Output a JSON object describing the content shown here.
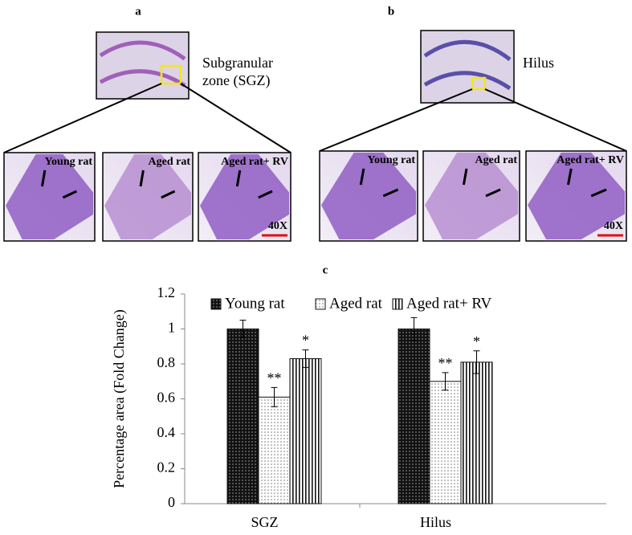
{
  "panels": [
    {
      "label": "a",
      "caption": [
        "Subgranular",
        "zone (SGZ)"
      ],
      "insets": [
        "Young rat",
        "Aged  rat",
        "Aged rat+ RV"
      ],
      "scale": "40X"
    },
    {
      "label": "b",
      "caption": [
        "Hilus"
      ],
      "insets": [
        "Young rat",
        "Aged  rat",
        "Aged rat+ RV"
      ],
      "scale": "40X"
    }
  ],
  "chart_data": {
    "type": "bar",
    "title": "c",
    "y_label": "Percentage area (Fold Change)",
    "categories": [
      "SGZ",
      "Hilus"
    ],
    "series": [
      {
        "name": "Young rat",
        "color": "#222222",
        "values": [
          1,
          1
        ],
        "errors": [
          0.05,
          0.065
        ],
        "marks": [
          null,
          null
        ]
      },
      {
        "name": "Aged rat",
        "color": "#e6e6e6",
        "values": [
          0.61,
          0.7
        ],
        "errors": [
          0.055,
          0.05
        ],
        "marks": [
          "**",
          "**"
        ]
      },
      {
        "name": "Aged rat+ RV",
        "color": "#ffffff",
        "values": [
          0.83,
          0.81
        ],
        "errors": [
          0.05,
          0.065
        ],
        "marks": [
          "*",
          "*"
        ]
      }
    ],
    "ylim": [
      0,
      1.2
    ],
    "yticks": [
      0,
      0.2,
      0.4,
      0.6,
      0.8,
      1,
      1.2
    ],
    "legend": "top"
  }
}
